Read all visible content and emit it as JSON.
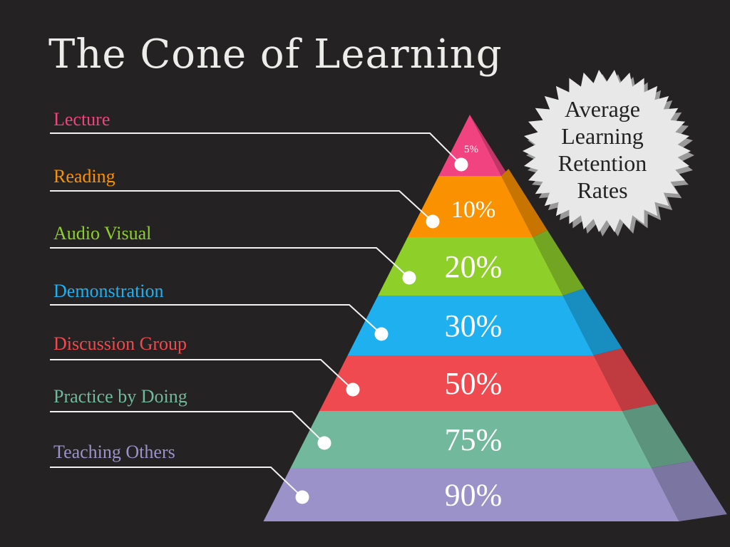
{
  "title": "The Cone of Learning",
  "badge": {
    "lines": [
      "Average",
      "Learning",
      "Retention",
      "Rates"
    ]
  },
  "levels": [
    {
      "label": "Lecture",
      "value": "5%",
      "color": "#f0437f"
    },
    {
      "label": "Reading",
      "value": "10%",
      "color": "#fa9100"
    },
    {
      "label": "Audio Visual",
      "value": "20%",
      "color": "#8ecf2a"
    },
    {
      "label": "Demonstration",
      "value": "30%",
      "color": "#1eb0ef"
    },
    {
      "label": "Discussion Group",
      "value": "50%",
      "color": "#ef4a4f"
    },
    {
      "label": "Practice by Doing",
      "value": "75%",
      "color": "#72b89c"
    },
    {
      "label": "Teaching Others",
      "value": "90%",
      "color": "#9a92c9"
    }
  ],
  "background": "#242222"
}
